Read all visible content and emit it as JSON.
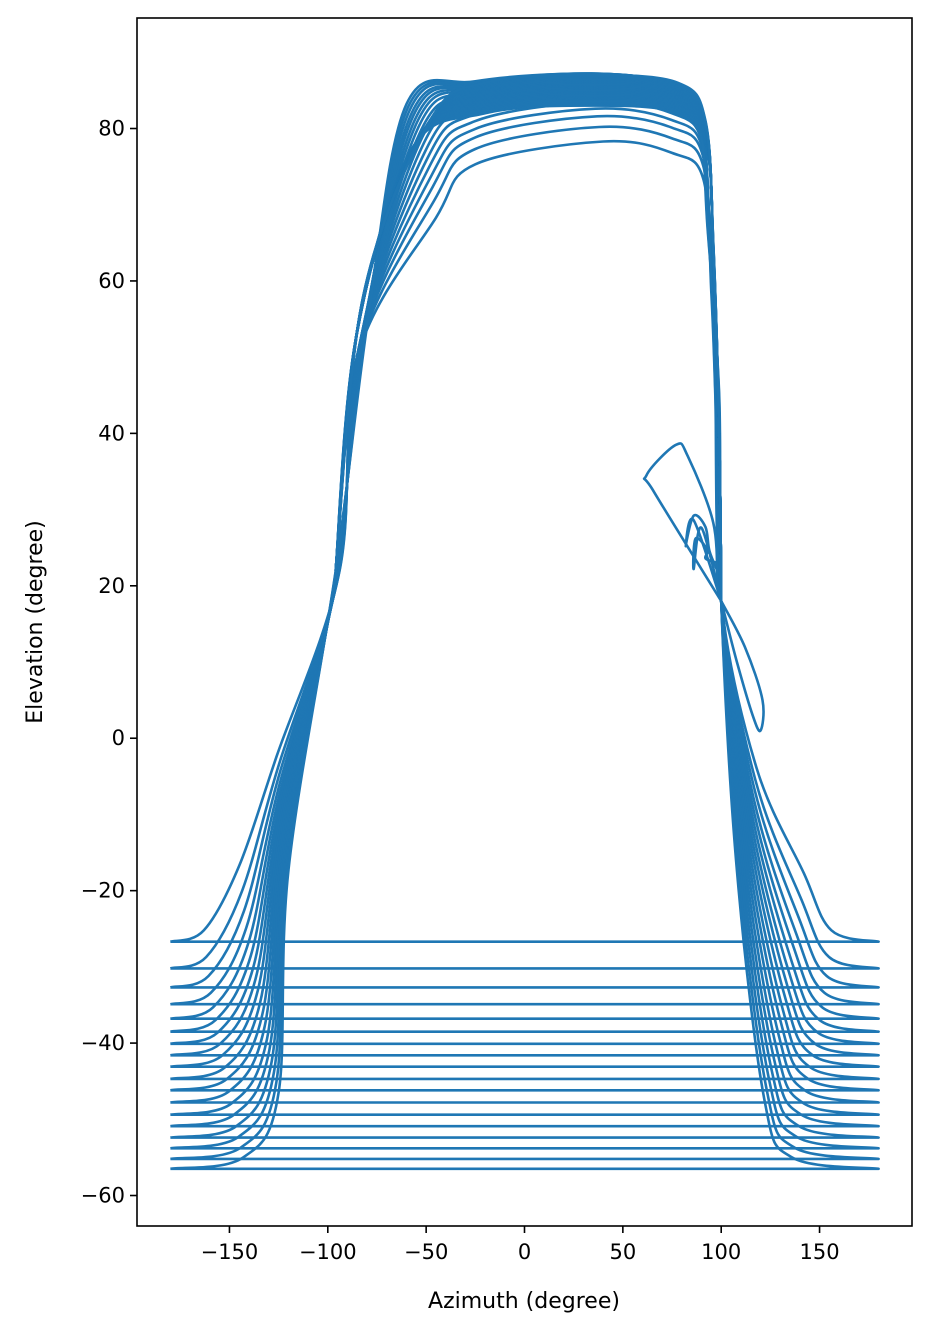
{
  "chart_data": {
    "type": "line",
    "title": "",
    "xlabel": "Azimuth (degree)",
    "ylabel": "Elevation (degree)",
    "xlim": [
      -197,
      197
    ],
    "ylim": [
      -64,
      94.5
    ],
    "xticks": [
      -150,
      -100,
      -50,
      0,
      50,
      100,
      150
    ],
    "xtick_labels": [
      "−150",
      "−100",
      "−50",
      "0",
      "50",
      "100",
      "150"
    ],
    "yticks": [
      -60,
      -40,
      -20,
      0,
      20,
      40,
      60,
      80
    ],
    "ytick_labels": [
      "−60",
      "−40",
      "−20",
      "0",
      "20",
      "40",
      "60",
      "80"
    ],
    "grid": false,
    "legend": "none",
    "line_color": "#1f77b4",
    "trajectory_count": 18,
    "track_elevations_start": [
      -26.7,
      -30.2,
      -32.7,
      -34.9,
      -36.8,
      -38.5,
      -40.1,
      -41.6,
      -43.1,
      -44.7,
      -46.2,
      -47.8,
      -49.4,
      -50.9,
      -52.4,
      -53.8,
      -55.2,
      -56.5
    ],
    "track_peak_elevations": [
      78.3,
      80.2,
      81.6,
      82.6,
      83.5,
      84.3,
      85.0,
      85.6,
      86.0,
      86.4,
      86.7,
      86.9,
      87.0,
      87.1,
      87.1,
      87.2,
      87.2,
      87.2
    ],
    "track_peak_azimuths": [
      40,
      38,
      37,
      36,
      36,
      35,
      35,
      35,
      35,
      34,
      34,
      34,
      34,
      34,
      34,
      34,
      34,
      34
    ],
    "crossing_left": {
      "azimuth": -95,
      "elevation": 22
    },
    "crossing_right": {
      "azimuth": 100,
      "elevation": 18
    },
    "loops": [
      {
        "azimuth_min": 62,
        "azimuth_max": 100,
        "elevation_max": 38.5,
        "elevation_min": 18
      },
      {
        "azimuth_min": 82,
        "azimuth_max": 98,
        "elevation_max": 29.2,
        "elevation_min": 20
      },
      {
        "azimuth_min": 86,
        "azimuth_max": 96,
        "elevation_max": 26.2,
        "elevation_min": 21
      },
      {
        "azimuth_min": 100,
        "azimuth_max": 123,
        "elevation_max": 18,
        "elevation_min": 1
      }
    ]
  }
}
